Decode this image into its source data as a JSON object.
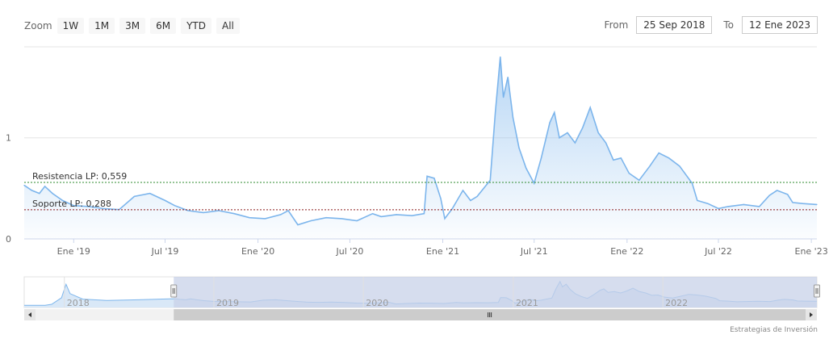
{
  "toolbar": {
    "zoom_label": "Zoom",
    "buttons": [
      "1W",
      "1M",
      "3M",
      "6M",
      "YTD",
      "All"
    ],
    "from_label": "From",
    "from_value": "25 Sep 2018",
    "to_label": "To",
    "to_value": "12 Ene 2023"
  },
  "colors": {
    "series": "#7cb5ec",
    "resistance": "#2e8b2e",
    "support": "#8b1a1a",
    "navigator_mask": "#c8d2e8"
  },
  "chart_data": {
    "type": "area",
    "title": "",
    "xlabel": "",
    "ylabel": "",
    "ylim": [
      0,
      1.9
    ],
    "yticks": [
      0,
      1
    ],
    "xlim": [
      "2018-09-25",
      "2023-01-12"
    ],
    "xticks": [
      {
        "date": "2019-01-01",
        "label": "Ene '19"
      },
      {
        "date": "2019-07-01",
        "label": "Jul '19"
      },
      {
        "date": "2020-01-01",
        "label": "Ene '20"
      },
      {
        "date": "2020-07-01",
        "label": "Jul '20"
      },
      {
        "date": "2021-01-01",
        "label": "Ene '21"
      },
      {
        "date": "2021-07-01",
        "label": "Jul '21"
      },
      {
        "date": "2022-01-01",
        "label": "Ene '22"
      },
      {
        "date": "2022-07-01",
        "label": "Jul '22"
      },
      {
        "date": "2023-01-01",
        "label": "Ene '23"
      }
    ],
    "grid": true,
    "series": [
      {
        "points": [
          [
            "2018-09-25",
            0.53
          ],
          [
            "2018-10-10",
            0.48
          ],
          [
            "2018-10-25",
            0.45
          ],
          [
            "2018-11-05",
            0.52
          ],
          [
            "2018-11-20",
            0.45
          ],
          [
            "2018-12-10",
            0.38
          ],
          [
            "2019-01-01",
            0.33
          ],
          [
            "2019-02-01",
            0.32
          ],
          [
            "2019-03-01",
            0.3
          ],
          [
            "2019-04-01",
            0.29
          ],
          [
            "2019-05-01",
            0.42
          ],
          [
            "2019-06-01",
            0.45
          ],
          [
            "2019-07-01",
            0.38
          ],
          [
            "2019-07-20",
            0.33
          ],
          [
            "2019-08-15",
            0.28
          ],
          [
            "2019-09-15",
            0.26
          ],
          [
            "2019-10-15",
            0.28
          ],
          [
            "2019-11-15",
            0.25
          ],
          [
            "2019-12-15",
            0.21
          ],
          [
            "2020-01-15",
            0.2
          ],
          [
            "2020-02-15",
            0.24
          ],
          [
            "2020-03-01",
            0.28
          ],
          [
            "2020-03-20",
            0.14
          ],
          [
            "2020-04-15",
            0.18
          ],
          [
            "2020-05-15",
            0.21
          ],
          [
            "2020-06-15",
            0.2
          ],
          [
            "2020-07-15",
            0.18
          ],
          [
            "2020-08-15",
            0.25
          ],
          [
            "2020-09-01",
            0.22
          ],
          [
            "2020-10-01",
            0.24
          ],
          [
            "2020-11-01",
            0.23
          ],
          [
            "2020-11-25",
            0.25
          ],
          [
            "2020-12-01",
            0.62
          ],
          [
            "2020-12-15",
            0.6
          ],
          [
            "2020-12-28",
            0.4
          ],
          [
            "2021-01-05",
            0.2
          ],
          [
            "2021-01-20",
            0.3
          ],
          [
            "2021-02-10",
            0.48
          ],
          [
            "2021-02-25",
            0.38
          ],
          [
            "2021-03-10",
            0.42
          ],
          [
            "2021-04-05",
            0.58
          ],
          [
            "2021-04-15",
            1.25
          ],
          [
            "2021-04-25",
            1.8
          ],
          [
            "2021-05-01",
            1.4
          ],
          [
            "2021-05-10",
            1.6
          ],
          [
            "2021-05-20",
            1.2
          ],
          [
            "2021-06-01",
            0.9
          ],
          [
            "2021-06-15",
            0.7
          ],
          [
            "2021-07-01",
            0.55
          ],
          [
            "2021-07-15",
            0.8
          ],
          [
            "2021-08-01",
            1.15
          ],
          [
            "2021-08-10",
            1.25
          ],
          [
            "2021-08-20",
            1.0
          ],
          [
            "2021-09-05",
            1.05
          ],
          [
            "2021-09-20",
            0.95
          ],
          [
            "2021-10-05",
            1.1
          ],
          [
            "2021-10-20",
            1.3
          ],
          [
            "2021-11-05",
            1.05
          ],
          [
            "2021-11-20",
            0.95
          ],
          [
            "2021-12-05",
            0.78
          ],
          [
            "2021-12-20",
            0.8
          ],
          [
            "2022-01-05",
            0.65
          ],
          [
            "2022-01-25",
            0.58
          ],
          [
            "2022-02-15",
            0.72
          ],
          [
            "2022-03-05",
            0.85
          ],
          [
            "2022-03-25",
            0.8
          ],
          [
            "2022-04-15",
            0.72
          ],
          [
            "2022-05-10",
            0.55
          ],
          [
            "2022-05-20",
            0.38
          ],
          [
            "2022-06-10",
            0.35
          ],
          [
            "2022-07-01",
            0.3
          ],
          [
            "2022-07-20",
            0.32
          ],
          [
            "2022-08-20",
            0.34
          ],
          [
            "2022-09-20",
            0.32
          ],
          [
            "2022-10-10",
            0.43
          ],
          [
            "2022-10-25",
            0.48
          ],
          [
            "2022-11-15",
            0.44
          ],
          [
            "2022-11-25",
            0.36
          ],
          [
            "2022-12-15",
            0.35
          ],
          [
            "2023-01-12",
            0.34
          ]
        ]
      }
    ],
    "annotations": [
      {
        "label": "Resistencia LP: 0,559",
        "value": 0.559
      },
      {
        "label": "Soporte LP: 0,288",
        "value": 0.288
      }
    ],
    "navigator": {
      "years": [
        "2018",
        "2019",
        "2020",
        "2021",
        "2022"
      ],
      "selected_from": "2018-09-25",
      "selected_to": "2023-01-12"
    }
  },
  "credits": "Estrategias de Inversión"
}
